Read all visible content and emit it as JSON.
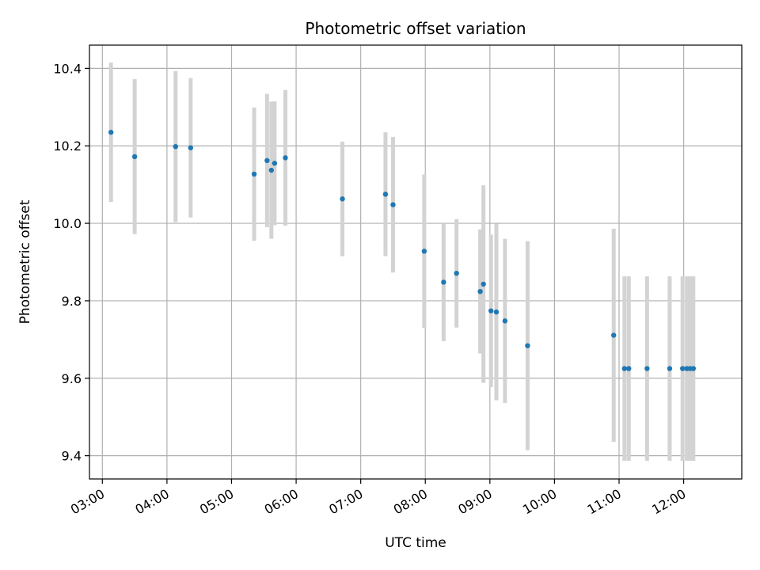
{
  "chart_data": {
    "type": "scatter",
    "title": "Photometric offset variation",
    "xlabel": "UTC time",
    "ylabel": "Photometric offset",
    "x_unit": "hours UTC",
    "xlim": [
      "02:48",
      "12:54"
    ],
    "ylim": [
      9.34,
      10.46
    ],
    "x_ticks": [
      "03:00",
      "04:00",
      "05:00",
      "06:00",
      "07:00",
      "08:00",
      "09:00",
      "10:00",
      "11:00",
      "12:00"
    ],
    "y_ticks": [
      9.4,
      9.6,
      9.8,
      10.0,
      10.2,
      10.4
    ],
    "y_tick_labels": [
      "9.4",
      "9.6",
      "9.8",
      "10.0",
      "10.2",
      "10.4"
    ],
    "grid": true,
    "colors": {
      "point": "#1f77b4",
      "errorbar": "#d3d3d3",
      "grid": "#b0b0b0",
      "axis": "#000000"
    },
    "points": [
      {
        "t": "03:08",
        "y": 10.235,
        "err": 0.18
      },
      {
        "t": "03:30",
        "y": 10.172,
        "err": 0.2
      },
      {
        "t": "04:08",
        "y": 10.198,
        "err": 0.195
      },
      {
        "t": "04:22",
        "y": 10.195,
        "err": 0.18
      },
      {
        "t": "05:21",
        "y": 10.127,
        "err": 0.172
      },
      {
        "t": "05:33",
        "y": 10.162,
        "err": 0.172
      },
      {
        "t": "05:37",
        "y": 10.137,
        "err": 0.177
      },
      {
        "t": "05:40",
        "y": 10.155,
        "err": 0.16
      },
      {
        "t": "05:50",
        "y": 10.169,
        "err": 0.175
      },
      {
        "t": "06:43",
        "y": 10.063,
        "err": 0.148
      },
      {
        "t": "07:23",
        "y": 10.075,
        "err": 0.16
      },
      {
        "t": "07:30",
        "y": 10.048,
        "err": 0.175
      },
      {
        "t": "07:59",
        "y": 9.928,
        "err": 0.198
      },
      {
        "t": "08:17",
        "y": 9.848,
        "err": 0.152
      },
      {
        "t": "08:29",
        "y": 9.871,
        "err": 0.14
      },
      {
        "t": "08:51",
        "y": 9.824,
        "err": 0.16
      },
      {
        "t": "08:54",
        "y": 9.843,
        "err": 0.255
      },
      {
        "t": "09:01",
        "y": 9.774,
        "err": 0.197
      },
      {
        "t": "09:06",
        "y": 9.771,
        "err": 0.228
      },
      {
        "t": "09:14",
        "y": 9.748,
        "err": 0.212
      },
      {
        "t": "09:35",
        "y": 9.684,
        "err": 0.27
      },
      {
        "t": "10:55",
        "y": 9.711,
        "err": 0.275
      },
      {
        "t": "11:05",
        "y": 9.625,
        "err": 0.238
      },
      {
        "t": "11:09",
        "y": 9.625,
        "err": 0.238
      },
      {
        "t": "11:26",
        "y": 9.625,
        "err": 0.238
      },
      {
        "t": "11:47",
        "y": 9.625,
        "err": 0.238
      },
      {
        "t": "11:59",
        "y": 9.625,
        "err": 0.238
      },
      {
        "t": "12:03",
        "y": 9.625,
        "err": 0.238
      },
      {
        "t": "12:06",
        "y": 9.625,
        "err": 0.238
      },
      {
        "t": "12:09",
        "y": 9.625,
        "err": 0.238
      }
    ]
  }
}
